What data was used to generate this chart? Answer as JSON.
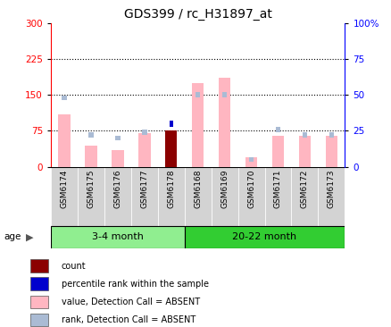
{
  "title": "GDS399 / rc_H31897_at",
  "samples": [
    "GSM6174",
    "GSM6175",
    "GSM6176",
    "GSM6177",
    "GSM6178",
    "GSM6168",
    "GSM6169",
    "GSM6170",
    "GSM6171",
    "GSM6172",
    "GSM6173"
  ],
  "value_absent": [
    110,
    45,
    35,
    70,
    0,
    175,
    185,
    20,
    65,
    65,
    65
  ],
  "rank_absent": [
    48,
    22,
    20,
    24,
    0,
    50,
    50,
    5,
    26,
    22,
    22
  ],
  "count": [
    0,
    0,
    0,
    0,
    75,
    0,
    0,
    0,
    0,
    0,
    0
  ],
  "percentile": [
    0,
    0,
    0,
    0,
    30,
    0,
    0,
    0,
    0,
    0,
    0
  ],
  "value_scale": 300,
  "rank_scale": 100,
  "yticks_left": [
    0,
    75,
    150,
    225,
    300
  ],
  "yticks_right": [
    0,
    25,
    50,
    75,
    100
  ],
  "group1_label": "3-4 month",
  "group1_count": 5,
  "group2_label": "20-22 month",
  "group2_count": 6,
  "group1_color": "#90EE90",
  "group2_color": "#32CD32",
  "color_count": "#8B0000",
  "color_percentile": "#0000CD",
  "color_value_absent": "#FFB6C1",
  "color_rank_absent": "#AABBD4",
  "cell_bg": "#D3D3D3",
  "plot_bg": "#FFFFFF",
  "legend_items": [
    [
      "#8B0000",
      "count"
    ],
    [
      "#0000CD",
      "percentile rank within the sample"
    ],
    [
      "#FFB6C1",
      "value, Detection Call = ABSENT"
    ],
    [
      "#AABBD4",
      "rank, Detection Call = ABSENT"
    ]
  ]
}
